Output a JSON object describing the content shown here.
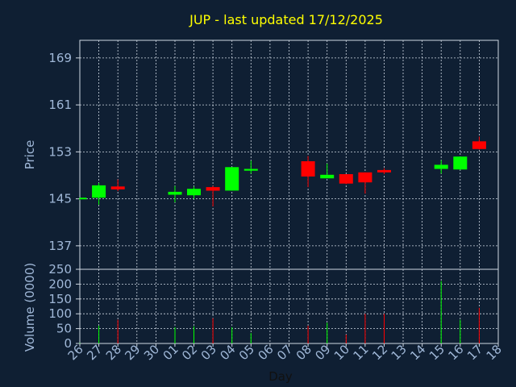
{
  "chart_data": {
    "type": "candlestick",
    "title": "JUP - last updated 17/12/2025",
    "xlabel": "Day",
    "ylabel": "Price",
    "volume_label": "Volume (0000)",
    "x_ticks": [
      "26",
      "27",
      "28",
      "29",
      "30",
      "01",
      "02",
      "03",
      "04",
      "05",
      "06",
      "07",
      "08",
      "09",
      "10",
      "11",
      "12",
      "13",
      "14",
      "15",
      "16",
      "17",
      "18"
    ],
    "price_ylim": [
      133,
      172
    ],
    "price_ticks": [
      "169",
      "161",
      "153",
      "145",
      "137"
    ],
    "volume_ylim": [
      0,
      250
    ],
    "volume_ticks": [
      "250",
      "200",
      "150",
      "100",
      "50",
      "0"
    ],
    "grid": true,
    "colors": {
      "background": "#0f1f33",
      "title": "#ffff00",
      "axis_text": "#a0b8d8",
      "grid": "#cfd8e3",
      "up": "#00ff00",
      "down": "#ff0000"
    },
    "candles": [
      {
        "day": "26",
        "open": 145.0,
        "high": 145.2,
        "low": 144.8,
        "close": 145.2,
        "volume": 2
      },
      {
        "day": "27",
        "open": 145.2,
        "high": 147.7,
        "low": 144.0,
        "close": 147.3,
        "volume": 60
      },
      {
        "day": "28",
        "open": 147.1,
        "high": 148.3,
        "low": 146.3,
        "close": 146.6,
        "volume": 80
      },
      {
        "day": "01",
        "open": 145.7,
        "high": 147.2,
        "low": 144.4,
        "close": 146.2,
        "volume": 55
      },
      {
        "day": "02",
        "open": 145.6,
        "high": 147.1,
        "low": 145.0,
        "close": 146.7,
        "volume": 58
      },
      {
        "day": "03",
        "open": 147.0,
        "high": 147.2,
        "low": 143.7,
        "close": 146.4,
        "volume": 85
      },
      {
        "day": "04",
        "open": 146.4,
        "high": 150.4,
        "low": 146.4,
        "close": 150.4,
        "volume": 55
      },
      {
        "day": "05",
        "open": 149.8,
        "high": 151.5,
        "low": 149.3,
        "close": 150.1,
        "volume": 35
      },
      {
        "day": "08",
        "open": 151.4,
        "high": 152.3,
        "low": 147.0,
        "close": 148.8,
        "volume": 60
      },
      {
        "day": "09",
        "open": 148.5,
        "high": 151.0,
        "low": 148.5,
        "close": 149.1,
        "volume": 70
      },
      {
        "day": "10",
        "open": 149.2,
        "high": 149.2,
        "low": 147.5,
        "close": 147.6,
        "volume": 30
      },
      {
        "day": "11",
        "open": 149.5,
        "high": 149.5,
        "low": 145.9,
        "close": 147.8,
        "volume": 100
      },
      {
        "day": "12",
        "open": 149.9,
        "high": 150.2,
        "low": 149.2,
        "close": 149.5,
        "volume": 100
      },
      {
        "day": "15",
        "open": 150.1,
        "high": 151.6,
        "low": 149.3,
        "close": 150.8,
        "volume": 210
      },
      {
        "day": "16",
        "open": 150.0,
        "high": 152.2,
        "low": 149.9,
        "close": 152.2,
        "volume": 80
      },
      {
        "day": "17",
        "open": 154.8,
        "high": 155.6,
        "low": 153.4,
        "close": 153.5,
        "volume": 120
      }
    ]
  }
}
